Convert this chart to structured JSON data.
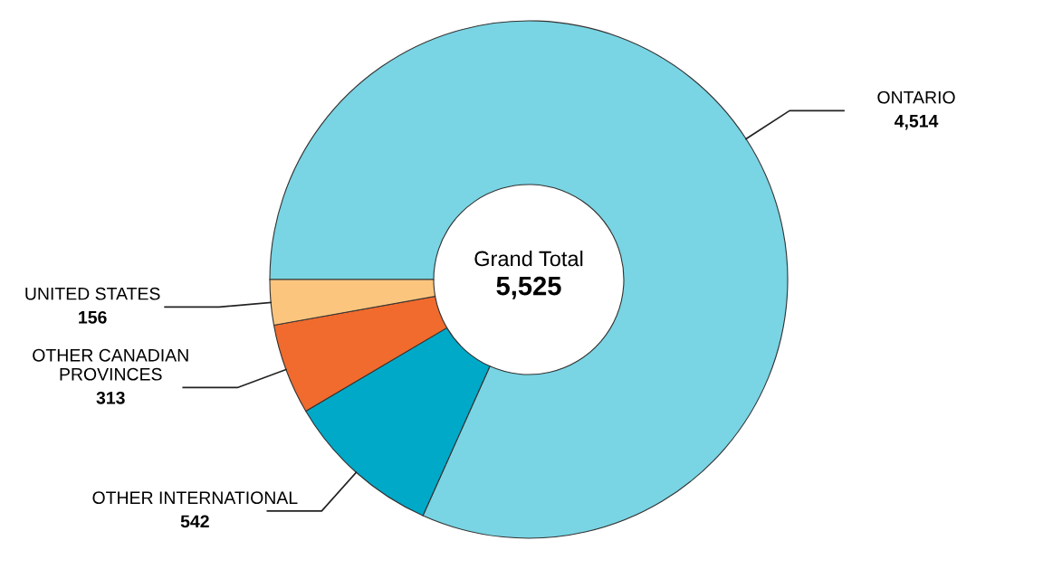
{
  "chart_data": {
    "type": "donut",
    "categories": [
      "ONTARIO",
      "OTHER INTERNATIONAL",
      "OTHER CANADIAN PROVINCES",
      "UNITED STATES"
    ],
    "values": [
      4514,
      542,
      313,
      156
    ],
    "colors": [
      "#79d4e3",
      "#00a9c8",
      "#f06b2d",
      "#fbc57d"
    ],
    "value_labels": [
      "4,514",
      "542",
      "313",
      "156"
    ],
    "annotations": [
      "Grand Total",
      "5,525"
    ],
    "legend": false
  }
}
